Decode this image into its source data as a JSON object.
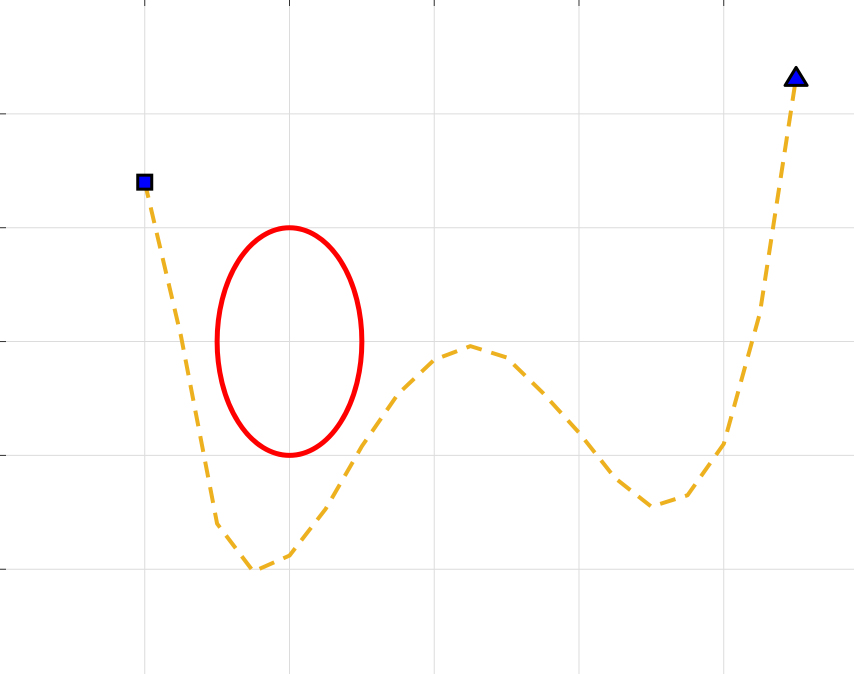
{
  "chart_data": {
    "type": "line",
    "x": [
      1,
      1.25,
      1.5,
      1.75,
      2,
      2.25,
      2.5,
      2.75,
      3,
      3.25,
      3.5,
      3.75,
      4,
      4.25,
      4.5,
      4.75,
      5,
      5.25,
      5.5
    ],
    "series": [
      {
        "color": "#EDB120",
        "dashed": true,
        "values": [
          1.4,
          0.05,
          -1.6,
          -2.02,
          -1.88,
          -1.47,
          -0.92,
          -0.46,
          -0.16,
          -0.04,
          -0.14,
          -0.45,
          -0.8,
          -1.2,
          -1.45,
          -1.35,
          -0.9,
          0.25,
          2.32
        ],
        "start_marker": {
          "shape": "square",
          "color": "#0000ff"
        },
        "end_marker": {
          "shape": "triangle",
          "color": "#0000ff"
        }
      }
    ],
    "ellipse": {
      "center_x": 2,
      "center_y": 0,
      "radius_x": 0.5,
      "radius_y": 1,
      "color": "#ff0000"
    },
    "xlim": [
      0,
      5.9
    ],
    "ylim": [
      -2.92,
      3
    ],
    "xticks": [
      1,
      2,
      3,
      4,
      5
    ],
    "yticks": [
      -2,
      -1,
      0,
      1,
      2
    ],
    "grid": true
  }
}
